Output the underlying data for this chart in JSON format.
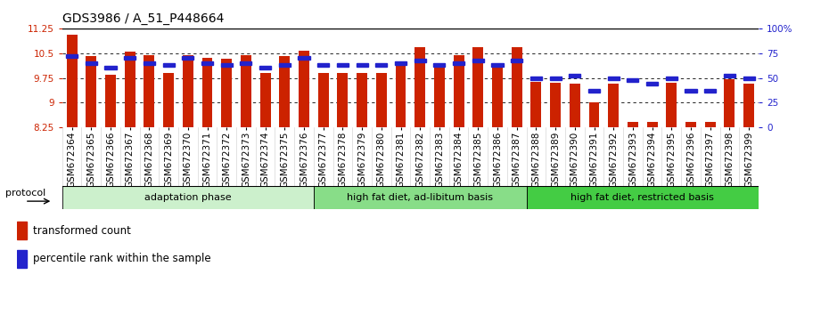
{
  "title": "GDS3986 / A_51_P448664",
  "samples": [
    "GSM672364",
    "GSM672365",
    "GSM672366",
    "GSM672367",
    "GSM672368",
    "GSM672369",
    "GSM672370",
    "GSM672371",
    "GSM672372",
    "GSM672373",
    "GSM672374",
    "GSM672375",
    "GSM672376",
    "GSM672377",
    "GSM672378",
    "GSM672379",
    "GSM672380",
    "GSM672381",
    "GSM672382",
    "GSM672383",
    "GSM672384",
    "GSM672385",
    "GSM672386",
    "GSM672387",
    "GSM672388",
    "GSM672389",
    "GSM672390",
    "GSM672391",
    "GSM672392",
    "GSM672393",
    "GSM672394",
    "GSM672395",
    "GSM672396",
    "GSM672397",
    "GSM672398",
    "GSM672399"
  ],
  "bar_values": [
    11.05,
    10.42,
    9.85,
    10.55,
    10.43,
    9.9,
    10.44,
    10.35,
    10.33,
    10.45,
    9.9,
    10.41,
    10.58,
    9.9,
    9.9,
    9.9,
    9.9,
    10.12,
    10.68,
    10.1,
    10.44,
    10.68,
    10.1,
    10.68,
    9.62,
    9.6,
    9.57,
    9.02,
    9.57,
    8.42,
    8.42,
    9.6,
    8.42,
    8.42,
    9.7,
    9.57
  ],
  "percentile_values": [
    72,
    65,
    60,
    70,
    65,
    63,
    70,
    65,
    63,
    65,
    60,
    63,
    70,
    63,
    63,
    63,
    63,
    65,
    68,
    63,
    65,
    68,
    63,
    68,
    50,
    50,
    52,
    37,
    50,
    48,
    44,
    50,
    37,
    37,
    52,
    50
  ],
  "ylim_left": [
    8.25,
    11.25
  ],
  "ylim_right": [
    0,
    100
  ],
  "yticks_left": [
    8.25,
    9.0,
    9.75,
    10.5,
    11.25
  ],
  "ytick_labels_left": [
    "8.25",
    "9",
    "9.75",
    "10.5",
    "11.25"
  ],
  "yticks_right": [
    0,
    25,
    50,
    75,
    100
  ],
  "ytick_labels_right": [
    "0",
    "25",
    "50",
    "75",
    "100%"
  ],
  "groups": [
    {
      "label": "adaptation phase",
      "start": 0,
      "end": 13
    },
    {
      "label": "high fat diet, ad-libitum basis",
      "start": 13,
      "end": 24
    },
    {
      "label": "high fat diet, restricted basis",
      "start": 24,
      "end": 36
    }
  ],
  "group_colors": [
    "#ccf0cc",
    "#88dd88",
    "#44cc44"
  ],
  "bar_color": "#cc2200",
  "dot_color": "#2222cc",
  "bar_bottom": 8.25,
  "tick_fontsize": 7.5,
  "label_fontsize": 8.5,
  "title_fontsize": 10
}
